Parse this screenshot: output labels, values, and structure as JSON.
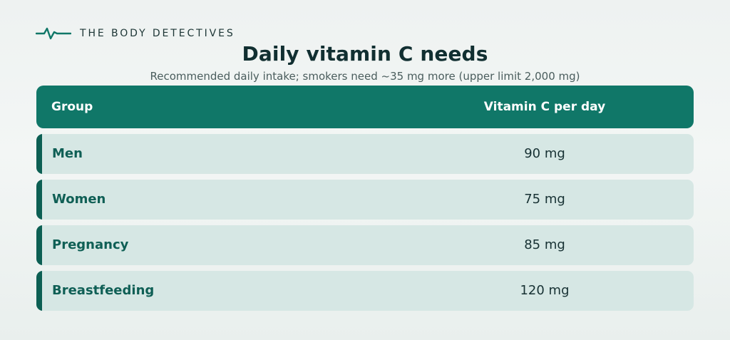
{
  "brand": {
    "name": "THE BODY DETECTIVES",
    "icon": "heartbeat-line-icon",
    "icon_color": "#107768"
  },
  "header": {
    "title": "Daily vitamin C needs",
    "subtitle": "Recommended daily intake; smokers need ~35 mg more (upper limit 2,000 mg)"
  },
  "table": {
    "columns": [
      "Group",
      "Vitamin C per day"
    ],
    "rows": [
      {
        "group": "Men",
        "value": "90 mg"
      },
      {
        "group": "Women",
        "value": "75 mg"
      },
      {
        "group": "Pregnancy",
        "value": "85 mg"
      },
      {
        "group": "Breastfeeding",
        "value": "120 mg"
      }
    ]
  },
  "colors": {
    "header_bg": "#107768",
    "row_bg": "#d6e7e4",
    "row_accent": "#0c5f53",
    "group_text": "#0f5f55",
    "title_text": "#112f31"
  }
}
